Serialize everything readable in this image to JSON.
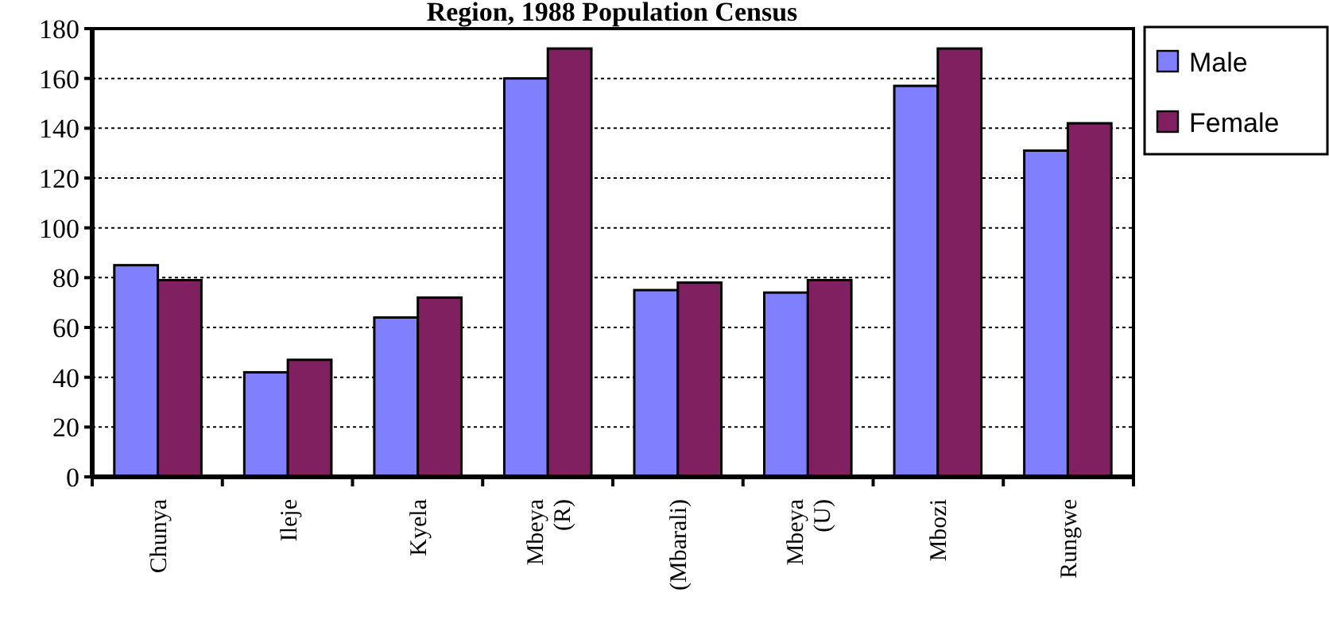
{
  "chart_data": {
    "type": "bar",
    "title": "Region, 1988 Population Census",
    "categories": [
      "Chunya",
      "Ileje",
      "Kyela",
      "Mbeya\n(R)",
      "(Mbarali)",
      "Mbeya\n(U)",
      "Mbozi",
      "Rungwe"
    ],
    "series": [
      {
        "name": "Male",
        "color": "#8080ff",
        "values": [
          85,
          42,
          64,
          160,
          75,
          74,
          157,
          131
        ]
      },
      {
        "name": "Female",
        "color": "#802060",
        "values": [
          79,
          47,
          72,
          172,
          78,
          79,
          172,
          142
        ]
      }
    ],
    "ylim": [
      0,
      180
    ],
    "yticks": [
      0,
      20,
      40,
      60,
      80,
      100,
      120,
      140,
      160,
      180
    ],
    "grid": "y",
    "legend": "top right"
  }
}
